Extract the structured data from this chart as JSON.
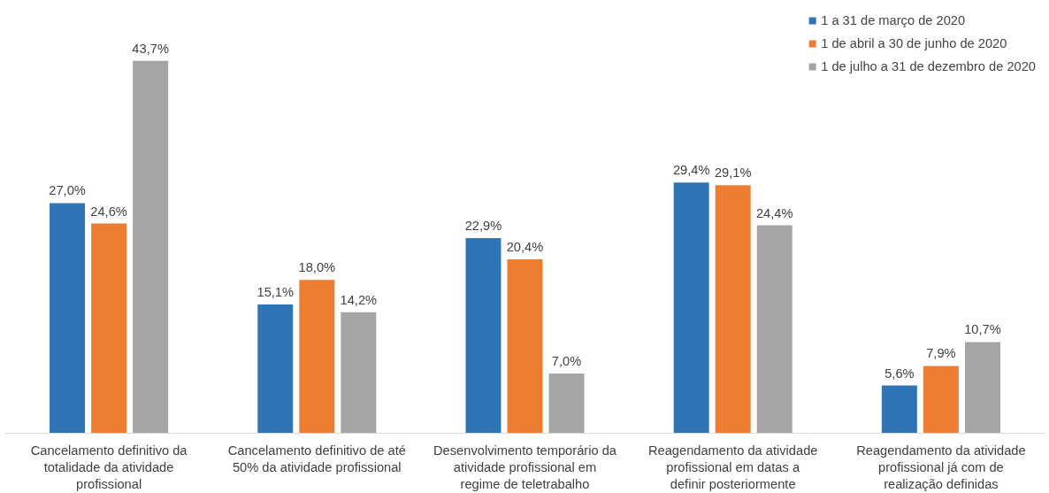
{
  "chart_data": {
    "type": "bar",
    "categories": [
      "Cancelamento definitivo da totalidade da atividade profissional",
      "Cancelamento definitivo de até 50% da atividade profissional",
      "Desenvolvimento temporário da atividade profissional em regime de teletrabalho",
      "Reagendamento da atividade profissional em datas a definir posteriormente",
      "Reagendamento da atividade profissional já com de realização definidas"
    ],
    "series": [
      {
        "name": "1 a 31 de março de 2020",
        "color": "#2e75b6",
        "values": [
          27.0,
          15.1,
          22.9,
          29.4,
          5.6
        ],
        "value_labels": [
          "27,0%",
          "15,1%",
          "22,9%",
          "29,4%",
          "5,6%"
        ]
      },
      {
        "name": "1 de abril a 30 de junho de 2020",
        "color": "#ed7d31",
        "values": [
          24.6,
          18.0,
          20.4,
          29.1,
          7.9
        ],
        "value_labels": [
          "24,6%",
          "18,0%",
          "20,4%",
          "29,1%",
          "7,9%"
        ]
      },
      {
        "name": "1 de julho a 31 de dezembro de 2020",
        "color": "#a5a5a5",
        "values": [
          43.7,
          14.2,
          7.0,
          24.4,
          10.7
        ],
        "value_labels": [
          "43,7%",
          "14,2%",
          "7,0%",
          "24,4%",
          "10,7%"
        ]
      }
    ],
    "legend": "top right",
    "grid": false
  }
}
